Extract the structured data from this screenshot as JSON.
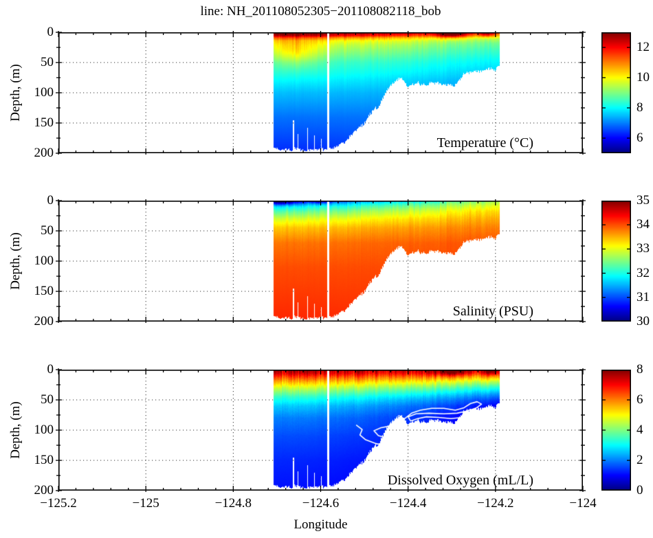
{
  "figure": {
    "title": "line: NH_201108052305−201108082118_bob",
    "xlabel": "Longitude",
    "ylabel": "Depth, (m)",
    "background": "#ffffff",
    "text_color": "#000000"
  },
  "chart_data": {
    "type": "heatmap",
    "description": "Three stacked vertical ocean sections (depth vs longitude) from a towed/undulating vehicle along the NH line: Temperature, Salinity and Dissolved Oxygen, jet colormap, seafloor shoaling from ~195 m offshore to ~60 m inshore. White contour in the oxygen panel encloses the lowest-oxygen water near the bottom.",
    "colormap": "jet",
    "axes": {
      "xlim": [
        -125.2,
        -124
      ],
      "xticks": [
        -125.2,
        -125,
        -124.8,
        -124.6,
        -124.4,
        -124.2,
        -124
      ],
      "xtick_labels": [
        "−125.2",
        "−125",
        "−124.8",
        "−124.6",
        "−124.4",
        "−124.2",
        "−124"
      ],
      "x_minor_step": 0.04,
      "ylim": [
        0,
        200
      ],
      "yticks": [
        0,
        50,
        100,
        150,
        200
      ],
      "ytick_labels": [
        "0",
        "50",
        "100",
        "150",
        "200"
      ],
      "y_minor_step": 25,
      "y_direction": "reversed",
      "grid_style": "dotted"
    },
    "x_extent": [
      -124.708,
      -124.19
    ],
    "bathymetry": {
      "lon": [
        -124.708,
        -124.6,
        -124.565,
        -124.54,
        -124.5,
        -124.465,
        -124.44,
        -124.415,
        -124.4,
        -124.37,
        -124.33,
        -124.295,
        -124.27,
        -124.25,
        -124.225,
        -124.19
      ],
      "bottom_depth_m": [
        195,
        195,
        192,
        178,
        150,
        118,
        88,
        72,
        89,
        85,
        83,
        86,
        70,
        64,
        63,
        60
      ]
    },
    "data_gaps": [
      {
        "lon": -124.583,
        "half_width": 0.002,
        "from_depth": 0
      },
      {
        "lon": -124.662,
        "half_width": 0.0012,
        "from_depth": 145
      },
      {
        "lon": -124.652,
        "half_width": 0.001,
        "from_depth": 168
      },
      {
        "lon": -124.63,
        "half_width": 0.0012,
        "from_depth": 158
      },
      {
        "lon": -124.614,
        "half_width": 0.0009,
        "from_depth": 170
      },
      {
        "lon": -124.598,
        "half_width": 0.0009,
        "from_depth": 176
      }
    ],
    "panels": [
      {
        "name": "temperature",
        "label": "Temperature (°C)",
        "clim": [
          5,
          13
        ],
        "colorbar_ticks": [
          6,
          8,
          10,
          12
        ],
        "colorbar_tick_labels": [
          "6",
          "8",
          "10",
          "12"
        ],
        "profile_offshore": {
          "depth_m": [
            0,
            5,
            9,
            14,
            22,
            35,
            50,
            70,
            100,
            140,
            200
          ],
          "value": [
            13.1,
            12.6,
            11.2,
            10.2,
            9.7,
            9.2,
            8.6,
            8.2,
            7.5,
            6.9,
            6.3
          ]
        },
        "profile_inshore": {
          "depth_m": [
            0,
            5,
            10,
            18,
            30,
            45,
            60,
            80,
            200
          ],
          "value": [
            11.3,
            10.5,
            9.4,
            8.8,
            8.4,
            8.0,
            7.7,
            7.3,
            6.6
          ]
        },
        "blend_power": 1.6,
        "noise_amp": 0.45,
        "noise_depth_m": 45,
        "anomalies": [
          {
            "lon": -124.3,
            "sigma_lon": 0.025,
            "depth_center": 2,
            "depth_sigma": 5,
            "amp": 2.4
          },
          {
            "lon": -124.22,
            "sigma_lon": 0.012,
            "depth_center": 2,
            "depth_sigma": 4,
            "amp": 1.6
          },
          {
            "lon": -124.655,
            "sigma_lon": 0.035,
            "depth_center": 32,
            "depth_sigma": 18,
            "amp": 0.9
          }
        ]
      },
      {
        "name": "salinity",
        "label": "Salinity (PSU)",
        "clim": [
          30,
          35
        ],
        "colorbar_ticks": [
          30,
          31,
          32,
          33,
          34,
          35
        ],
        "colorbar_tick_labels": [
          "30",
          "31",
          "32",
          "33",
          "34",
          "35"
        ],
        "profile_offshore": {
          "depth_m": [
            0,
            4,
            10,
            18,
            30,
            45,
            70,
            110,
            200
          ],
          "value": [
            30.5,
            31.2,
            31.8,
            32.3,
            32.9,
            33.4,
            33.8,
            34.0,
            34.2
          ]
        },
        "profile_inshore": {
          "depth_m": [
            0,
            8,
            18,
            30,
            45,
            70,
            200
          ],
          "value": [
            32.8,
            33.1,
            33.4,
            33.6,
            33.8,
            34.0,
            34.1
          ]
        },
        "blend_power": 1.3,
        "noise_amp": 0.3,
        "noise_depth_m": 40,
        "anomalies": [
          {
            "lon": -124.69,
            "sigma_lon": 0.028,
            "depth_center": 1,
            "depth_sigma": 4,
            "amp": -1.1
          },
          {
            "lon": -124.6,
            "sigma_lon": 0.018,
            "depth_center": 1,
            "depth_sigma": 3,
            "amp": -0.7
          }
        ]
      },
      {
        "name": "dissolved-oxygen",
        "label": "Dissolved Oxygen (mL/L)",
        "clim": [
          0,
          8
        ],
        "colorbar_ticks": [
          0,
          2,
          4,
          6,
          8
        ],
        "colorbar_tick_labels": [
          "0",
          "2",
          "4",
          "6",
          "8"
        ],
        "profile_offshore": {
          "depth_m": [
            0,
            6,
            12,
            20,
            30,
            45,
            60,
            80,
            110,
            150,
            200
          ],
          "value": [
            7.7,
            7.3,
            6.5,
            5.6,
            4.6,
            3.4,
            2.6,
            2.0,
            1.6,
            1.3,
            1.1
          ]
        },
        "profile_inshore": {
          "depth_m": [
            0,
            6,
            12,
            20,
            30,
            40,
            50,
            60,
            75,
            200
          ],
          "value": [
            7.2,
            6.6,
            5.6,
            4.4,
            3.2,
            2.2,
            1.4,
            0.9,
            0.6,
            0.5
          ]
        },
        "blend_power": 1.8,
        "noise_amp": 0.9,
        "noise_depth_m": 30,
        "anomalies": [
          {
            "lon": -124.3,
            "sigma_lon": 0.03,
            "depth_center": 2,
            "depth_sigma": 6,
            "amp": 1.4
          },
          {
            "lon": -124.21,
            "sigma_lon": 0.012,
            "depth_center": 2,
            "depth_sigma": 5,
            "amp": 1.2
          }
        ],
        "contour": {
          "color": "#ffffff",
          "note": "white contour around lowest-oxygen water near the bottom",
          "points_lon_depth": [
            [
              -124.518,
              92
            ],
            [
              -124.505,
              99
            ],
            [
              -124.51,
              108
            ],
            [
              -124.497,
              116
            ],
            [
              -124.475,
              122
            ],
            [
              -124.452,
              126
            ],
            [
              -124.435,
              121
            ],
            [
              -124.448,
              113
            ],
            [
              -124.468,
              109
            ],
            [
              -124.478,
              101
            ],
            [
              -124.462,
              96
            ],
            [
              -124.44,
              93
            ],
            [
              -124.422,
              88
            ],
            [
              -124.408,
              81
            ],
            [
              -124.392,
              72
            ],
            [
              -124.372,
              67
            ],
            [
              -124.346,
              64
            ],
            [
              -124.318,
              64
            ],
            [
              -124.292,
              67
            ],
            [
              -124.272,
              63
            ],
            [
              -124.257,
              56
            ],
            [
              -124.242,
              53
            ],
            [
              -124.232,
              57
            ],
            [
              -124.243,
              63
            ],
            [
              -124.262,
              68
            ],
            [
              -124.288,
              72
            ],
            [
              -124.318,
              73
            ],
            [
              -124.352,
              72
            ],
            [
              -124.382,
              73
            ],
            [
              -124.4,
              78
            ],
            [
              -124.394,
              85
            ],
            [
              -124.378,
              81
            ],
            [
              -124.358,
              78
            ],
            [
              -124.33,
              79
            ],
            [
              -124.302,
              81
            ],
            [
              -124.276,
              79
            ],
            [
              -124.252,
              73
            ],
            [
              -124.228,
              67
            ],
            [
              -124.212,
              61
            ]
          ]
        }
      }
    ]
  }
}
